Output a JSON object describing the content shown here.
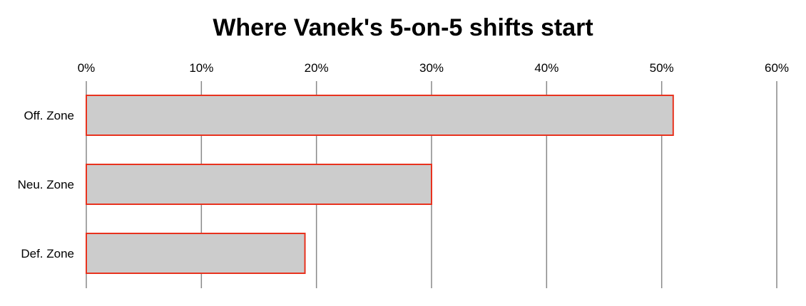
{
  "chart_data": {
    "type": "bar",
    "orientation": "horizontal",
    "title": "Where Vanek's 5-on-5 shifts start",
    "xlabel": "",
    "ylabel": "",
    "categories": [
      "Off. Zone",
      "Neu. Zone",
      "Def. Zone"
    ],
    "values": [
      51,
      30,
      19
    ],
    "value_unit": "%",
    "xlim": [
      0,
      60
    ],
    "x_ticks": [
      "0%",
      "10%",
      "20%",
      "30%",
      "40%",
      "50%",
      "60%"
    ],
    "tick_axis_position": "top",
    "grid": true,
    "colors": {
      "bar_fill": "#cccccc",
      "bar_stroke": "#e8321e",
      "grid": "#888888"
    }
  }
}
